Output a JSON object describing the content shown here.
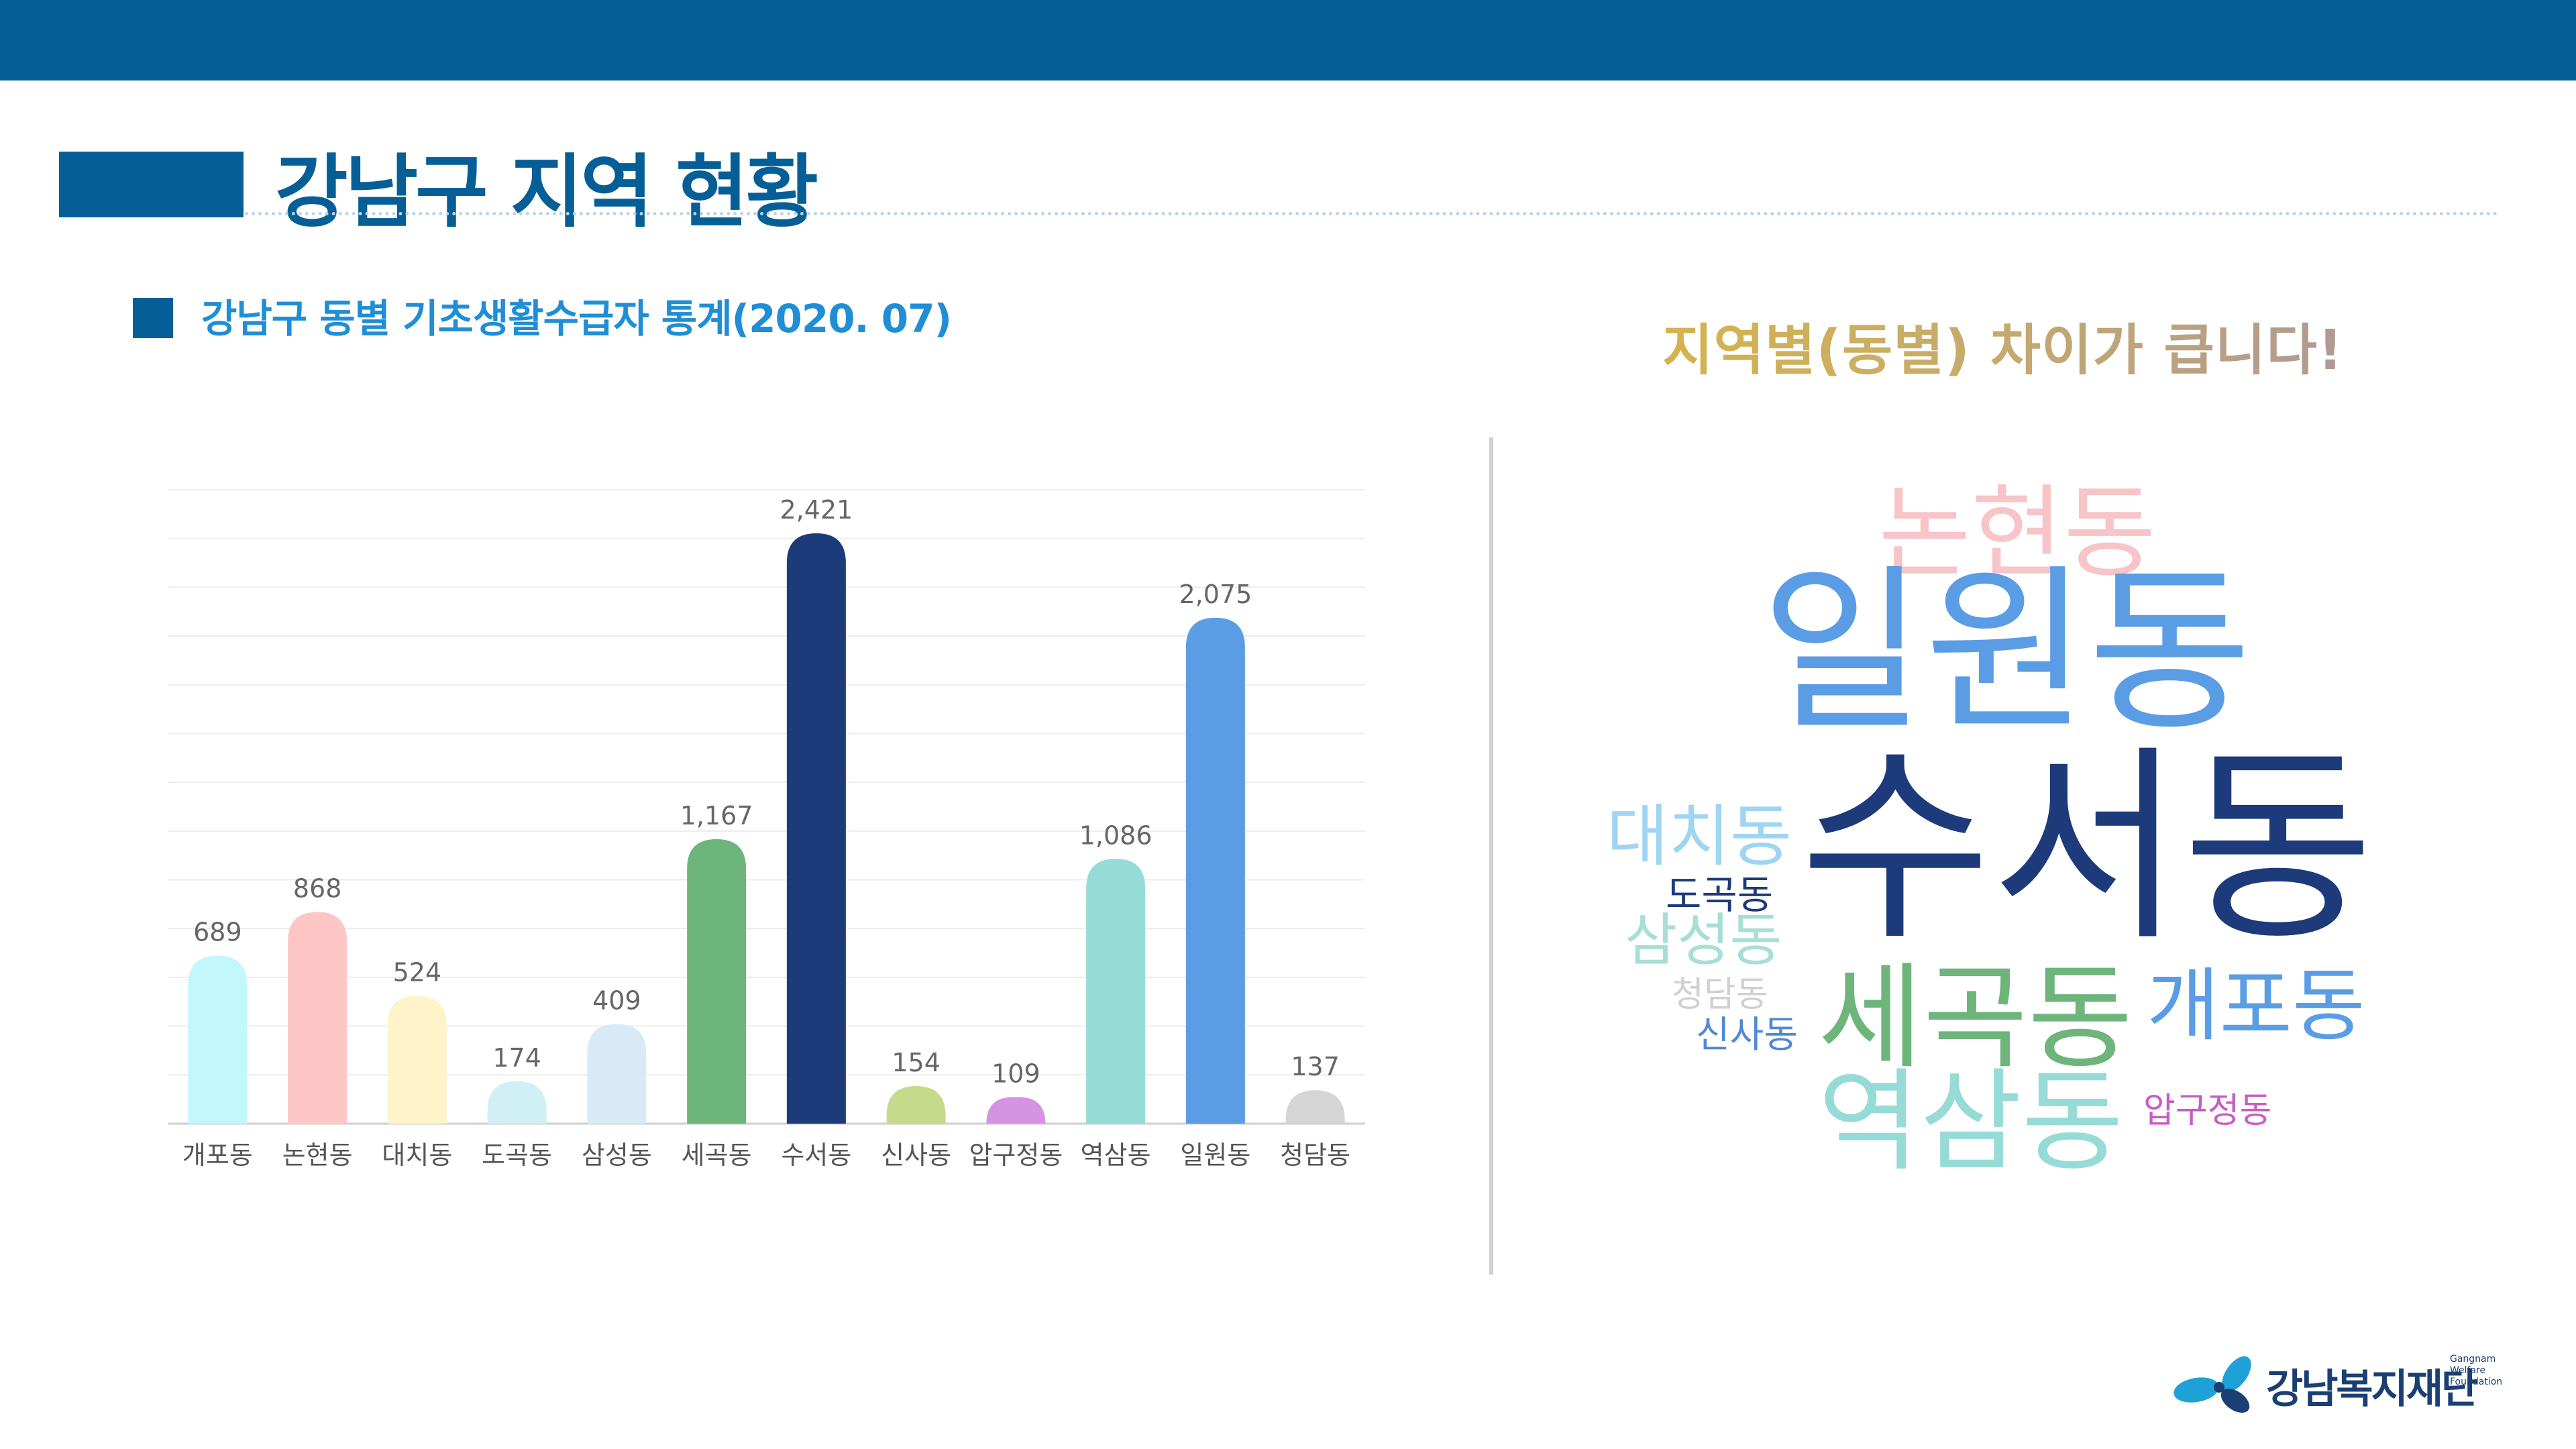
{
  "page": {
    "title": "강남구 지역 현황",
    "subtitle": "강남구 동별 기초생활수급자 통계(2020. 07)",
    "headline": "지역별(동별) 차이가 큽니다!"
  },
  "colors": {
    "brand": "#055f96",
    "subtitle": "#1f8ed6"
  },
  "chart_data": {
    "type": "bar",
    "categories": [
      "개포동",
      "논현동",
      "대치동",
      "도곡동",
      "삼성동",
      "세곡동",
      "수서동",
      "신사동",
      "압구정동",
      "역삼동",
      "일원동",
      "청담동"
    ],
    "values": [
      689,
      868,
      524,
      174,
      409,
      1167,
      2421,
      154,
      109,
      1086,
      2075,
      137
    ],
    "value_labels": [
      "689",
      "868",
      "524",
      "174",
      "409",
      "1,167",
      "2,421",
      "154",
      "109",
      "1,086",
      "2,075",
      "137"
    ],
    "colors": [
      "#c2f7fb",
      "#fdc5c5",
      "#fff4c9",
      "#d0f0f4",
      "#d9eaf7",
      "#6db57b",
      "#1d3a7a",
      "#c5db8b",
      "#d693e2",
      "#96dbd6",
      "#5b9de5",
      "#d5d5d5"
    ],
    "title": "",
    "xlabel": "",
    "ylabel": "",
    "ylim": [
      0,
      2600
    ],
    "grid": true,
    "legend": "none"
  },
  "word_cloud": [
    {
      "text": "논현동",
      "color": "#f7c4c8"
    },
    {
      "text": "일원동",
      "color": "#5b9de5"
    },
    {
      "text": "수서동",
      "color": "#1d3a7a"
    },
    {
      "text": "대치동",
      "color": "#9fd4f2"
    },
    {
      "text": "도곡동",
      "color": "#1d3a7a"
    },
    {
      "text": "삼성동",
      "color": "#a7ded6"
    },
    {
      "text": "청담동",
      "color": "#d0d0d0"
    },
    {
      "text": "신사동",
      "color": "#4f89d4"
    },
    {
      "text": "세곡동",
      "color": "#6db57b"
    },
    {
      "text": "개포동",
      "color": "#5b9de5"
    },
    {
      "text": "역삼동",
      "color": "#96dbd6"
    },
    {
      "text": "압구정동",
      "color": "#c95cc4"
    }
  ],
  "logo": {
    "name": "강남복지재단",
    "english": "Gangnam Welfare Foundation"
  }
}
